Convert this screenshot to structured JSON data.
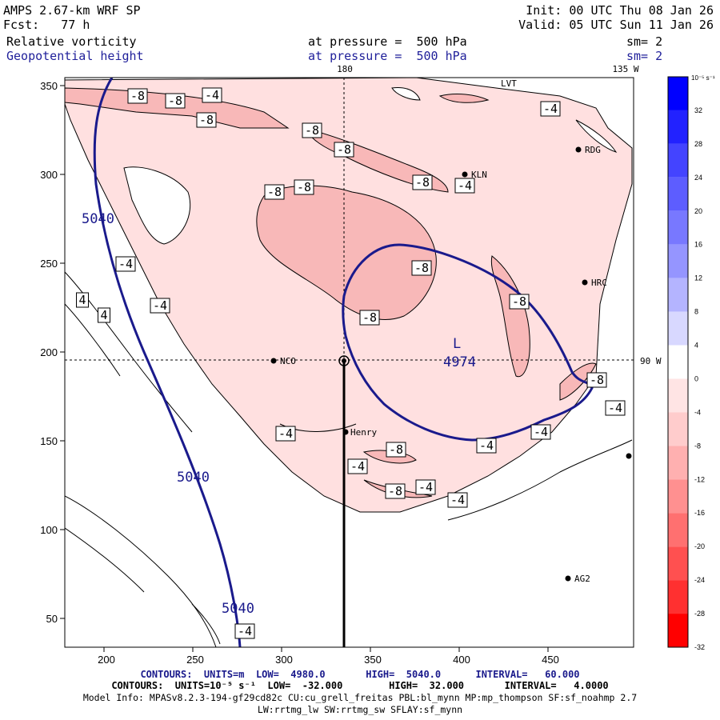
{
  "header": {
    "model": "AMPS 2.67-km WRF SP",
    "forecast": "Fcst:   77 h",
    "init": "Init: 00 UTC Thu 08 Jan 26",
    "valid": "Valid: 05 UTC Sun 11 Jan 26",
    "field1_name": "Relative vorticity",
    "field1_level": "at pressure =  500 hPa",
    "field1_sm": "sm= 2",
    "field2_name": "Geopotential height",
    "field2_level": "at pressure =  500 hPa",
    "field2_sm": "sm= 2"
  },
  "map": {
    "meridian_top_label": "180",
    "meridian_135_label": "135 W",
    "parallel_label": "90 W",
    "x_ticks": [
      "200",
      "250",
      "300",
      "350",
      "400",
      "450"
    ],
    "y_ticks": [
      "350",
      "300",
      "250",
      "200",
      "150",
      "100",
      "50"
    ],
    "stations": [
      {
        "name": "RDG"
      },
      {
        "name": "KLN"
      },
      {
        "name": "HRC"
      },
      {
        "name": "NCO"
      },
      {
        "name": "Henry"
      },
      {
        "name": "AG2"
      },
      {
        "name": "LVT"
      }
    ],
    "height_labels": [
      "5040",
      "5040",
      "5040",
      "4974"
    ],
    "low_marker": "L",
    "vort_labels": [
      "-8",
      "-4",
      "4"
    ]
  },
  "colorbar": {
    "units": "10⁻⁵ s⁻¹",
    "values": [
      "32",
      "28",
      "24",
      "20",
      "16",
      "12",
      "8",
      "4",
      "0",
      "-4",
      "-8",
      "-12",
      "-16",
      "-20",
      "-24",
      "-28",
      "-32"
    ],
    "colors": [
      "#0000ff",
      "#2222ff",
      "#4444ff",
      "#5d5dff",
      "#7878ff",
      "#9595ff",
      "#b4b4ff",
      "#d8d8ff",
      "#ffffff",
      "#ffe4e4",
      "#ffcccc",
      "#ffb0b0",
      "#ff9090",
      "#ff7070",
      "#ff5050",
      "#ff3030",
      "#ff0000"
    ]
  },
  "footer": {
    "line1": "CONTOURS:  UNITS=m  LOW=  4980.0       HIGH=  5040.0      INTERVAL=   60.000",
    "line2": "CONTOURS:  UNITS=10⁻⁵ s⁻¹  LOW=  -32.000        HIGH=  32.000       INTERVAL=   4.0000",
    "line3": "Model Info: MPASv8.2.3-194-gf29cd82c CU:cu_grell_freitas PBL:bl_mynn MP:mp_thompson SF:sf_noahmp 2.7",
    "line4": "LW:rrtmg_lw SW:rrtmg_sw SFLAY:sf_mynn"
  }
}
